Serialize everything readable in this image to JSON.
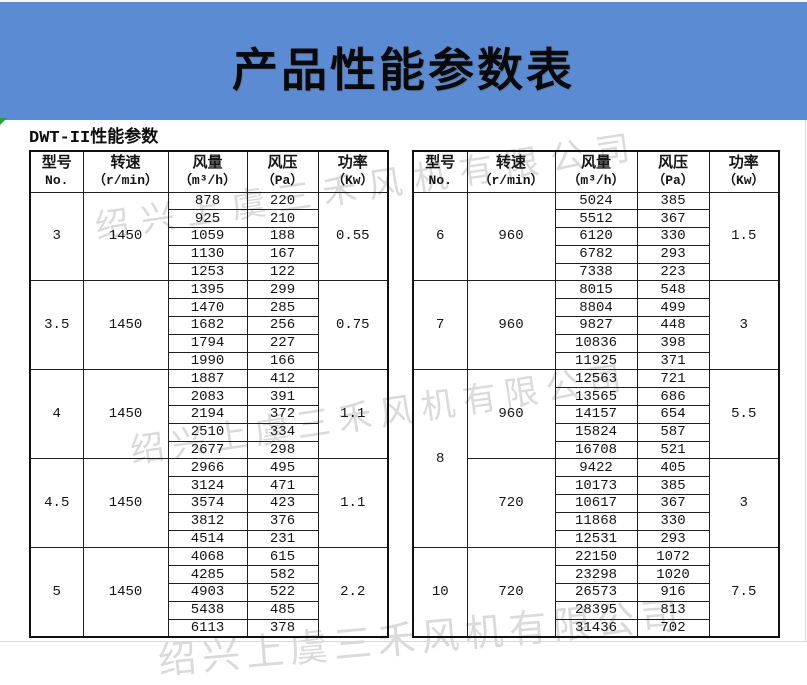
{
  "banner": {
    "title": "产品性能参数表",
    "bg_color": "#5b8cd3"
  },
  "subtitle": "DWT-II性能参数",
  "watermark": {
    "text": "绍兴上虞三禾风机有限公司",
    "color": "#c5c5c5"
  },
  "columns": [
    {
      "line1": "型号",
      "line2": "No."
    },
    {
      "line1": "转速",
      "line2": "（r/min）"
    },
    {
      "line1": "风量",
      "line2": "（m³/h）"
    },
    {
      "line1": "风压",
      "line2": "（Pa）"
    },
    {
      "line1": "功率",
      "line2": "（Kw）"
    }
  ],
  "tables": [
    {
      "groups": [
        {
          "model": "3",
          "bands": [
            {
              "speed": "1450",
              "power": "0.55",
              "rows": [
                [
                  "878",
                  "220"
                ],
                [
                  "925",
                  "210"
                ],
                [
                  "1059",
                  "188"
                ],
                [
                  "1130",
                  "167"
                ],
                [
                  "1253",
                  "122"
                ]
              ]
            }
          ]
        },
        {
          "model": "3.5",
          "bands": [
            {
              "speed": "1450",
              "power": "0.75",
              "rows": [
                [
                  "1395",
                  "299"
                ],
                [
                  "1470",
                  "285"
                ],
                [
                  "1682",
                  "256"
                ],
                [
                  "1794",
                  "227"
                ],
                [
                  "1990",
                  "166"
                ]
              ]
            }
          ]
        },
        {
          "model": "4",
          "bands": [
            {
              "speed": "1450",
              "power": "1.1",
              "rows": [
                [
                  "1887",
                  "412"
                ],
                [
                  "2083",
                  "391"
                ],
                [
                  "2194",
                  "372"
                ],
                [
                  "2510",
                  "334"
                ],
                [
                  "2677",
                  "298"
                ]
              ]
            }
          ]
        },
        {
          "model": "4.5",
          "bands": [
            {
              "speed": "1450",
              "power": "1.1",
              "rows": [
                [
                  "2966",
                  "495"
                ],
                [
                  "3124",
                  "471"
                ],
                [
                  "3574",
                  "423"
                ],
                [
                  "3812",
                  "376"
                ],
                [
                  "4514",
                  "231"
                ]
              ]
            }
          ]
        },
        {
          "model": "5",
          "bands": [
            {
              "speed": "1450",
              "power": "2.2",
              "rows": [
                [
                  "4068",
                  "615"
                ],
                [
                  "4285",
                  "582"
                ],
                [
                  "4903",
                  "522"
                ],
                [
                  "5438",
                  "485"
                ],
                [
                  "6113",
                  "378"
                ]
              ]
            }
          ]
        }
      ]
    },
    {
      "groups": [
        {
          "model": "6",
          "bands": [
            {
              "speed": "960",
              "power": "1.5",
              "rows": [
                [
                  "5024",
                  "385"
                ],
                [
                  "5512",
                  "367"
                ],
                [
                  "6120",
                  "330"
                ],
                [
                  "6782",
                  "293"
                ],
                [
                  "7338",
                  "223"
                ]
              ]
            }
          ]
        },
        {
          "model": "7",
          "bands": [
            {
              "speed": "960",
              "power": "3",
              "rows": [
                [
                  "8015",
                  "548"
                ],
                [
                  "8804",
                  "499"
                ],
                [
                  "9827",
                  "448"
                ],
                [
                  "10836",
                  "398"
                ],
                [
                  "11925",
                  "371"
                ]
              ]
            }
          ]
        },
        {
          "model": "8",
          "bands": [
            {
              "speed": "960",
              "power": "5.5",
              "rows": [
                [
                  "12563",
                  "721"
                ],
                [
                  "13565",
                  "686"
                ],
                [
                  "14157",
                  "654"
                ],
                [
                  "15824",
                  "587"
                ],
                [
                  "16708",
                  "521"
                ]
              ]
            },
            {
              "speed": "720",
              "power": "3",
              "rows": [
                [
                  "9422",
                  "405"
                ],
                [
                  "10173",
                  "385"
                ],
                [
                  "10617",
                  "367"
                ],
                [
                  "11868",
                  "330"
                ],
                [
                  "12531",
                  "293"
                ]
              ]
            }
          ]
        },
        {
          "model": "10",
          "bands": [
            {
              "speed": "720",
              "power": "7.5",
              "rows": [
                [
                  "22150",
                  "1072"
                ],
                [
                  "23298",
                  "1020"
                ],
                [
                  "26573",
                  "916"
                ],
                [
                  "28395",
                  "813"
                ],
                [
                  "31436",
                  "702"
                ]
              ]
            }
          ]
        }
      ]
    }
  ],
  "colors": {
    "banner_bg": "#5b8cd3",
    "border": "#1f1f1f",
    "watermark": "#c5c5c5",
    "corner_marker_green": "#27a22b"
  }
}
